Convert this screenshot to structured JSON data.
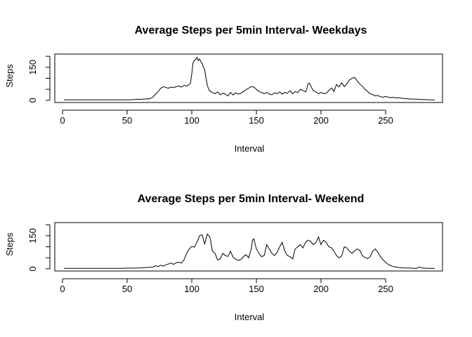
{
  "chart_data": [
    {
      "type": "line",
      "title": "Average Steps per 5min Interval- Weekdays",
      "xlabel": "Interval",
      "ylabel": "Steps",
      "xlim": [
        -6,
        294
      ],
      "ylim": [
        -10,
        210
      ],
      "xticks": [
        0,
        50,
        100,
        150,
        200,
        250
      ],
      "yticks": [
        0,
        50,
        100,
        150,
        200
      ],
      "ytick_labels": [
        "0",
        "",
        "",
        "150",
        ""
      ],
      "grid": false,
      "series": [
        {
          "x": [
            1,
            5,
            10,
            15,
            20,
            25,
            30,
            35,
            40,
            45,
            50,
            55,
            58,
            60,
            62,
            64,
            66,
            68,
            70,
            72,
            74,
            76,
            78,
            80,
            82,
            84,
            86,
            88,
            90,
            92,
            94,
            96,
            98,
            99,
            100,
            101,
            102,
            103,
            104,
            105,
            106,
            107,
            108,
            109,
            110,
            111,
            112,
            113,
            114,
            116,
            118,
            120,
            122,
            124,
            126,
            128,
            130,
            132,
            134,
            136,
            138,
            140,
            142,
            144,
            146,
            148,
            150,
            152,
            154,
            156,
            158,
            160,
            162,
            164,
            166,
            168,
            170,
            172,
            174,
            176,
            178,
            180,
            182,
            184,
            186,
            188,
            189,
            190,
            191,
            192,
            194,
            196,
            198,
            200,
            202,
            204,
            206,
            208,
            210,
            212,
            214,
            216,
            218,
            220,
            222,
            224,
            226,
            227,
            228,
            230,
            232,
            234,
            236,
            238,
            240,
            242,
            244,
            246,
            248,
            250,
            252,
            254,
            256,
            258,
            260,
            262,
            264,
            266,
            268,
            270,
            272,
            274,
            276,
            278,
            280,
            282,
            284,
            286,
            288
          ],
          "y": [
            2,
            2,
            2,
            2,
            2,
            2,
            2,
            2,
            2,
            2,
            2,
            3,
            5,
            4,
            5,
            6,
            7,
            8,
            15,
            28,
            40,
            55,
            62,
            58,
            55,
            60,
            58,
            62,
            65,
            60,
            68,
            64,
            72,
            78,
            120,
            170,
            182,
            185,
            195,
            180,
            188,
            176,
            168,
            150,
            140,
            100,
            70,
            50,
            42,
            35,
            30,
            38,
            25,
            32,
            28,
            20,
            36,
            24,
            34,
            28,
            32,
            40,
            48,
            55,
            62,
            60,
            50,
            40,
            35,
            30,
            36,
            28,
            25,
            34,
            30,
            38,
            28,
            36,
            32,
            44,
            30,
            40,
            35,
            50,
            45,
            38,
            52,
            75,
            78,
            66,
            44,
            38,
            30,
            36,
            30,
            32,
            44,
            56,
            40,
            72,
            60,
            80,
            62,
            74,
            92,
            100,
            104,
            96,
            88,
            74,
            64,
            50,
            40,
            30,
            26,
            20,
            22,
            16,
            14,
            18,
            14,
            12,
            14,
            10,
            12,
            10,
            8,
            8,
            6,
            6,
            5,
            5,
            4,
            4,
            3,
            3,
            2,
            2,
            2
          ]
        }
      ]
    },
    {
      "type": "line",
      "title": "Average Steps per 5min Interval- Weekend",
      "xlabel": "Interval",
      "ylabel": "Steps",
      "xlim": [
        -6,
        294
      ],
      "ylim": [
        -10,
        210
      ],
      "xticks": [
        0,
        50,
        100,
        150,
        200,
        250
      ],
      "yticks": [
        0,
        50,
        100,
        150,
        200
      ],
      "ytick_labels": [
        "0",
        "",
        "",
        "150",
        ""
      ],
      "grid": false,
      "series": [
        {
          "x": [
            1,
            5,
            10,
            15,
            20,
            25,
            30,
            35,
            40,
            45,
            50,
            55,
            60,
            65,
            70,
            72,
            74,
            76,
            78,
            80,
            82,
            84,
            86,
            88,
            90,
            92,
            94,
            96,
            98,
            100,
            102,
            104,
            106,
            108,
            110,
            112,
            114,
            116,
            118,
            120,
            122,
            124,
            126,
            128,
            130,
            132,
            134,
            136,
            138,
            140,
            142,
            144,
            146,
            147,
            148,
            150,
            152,
            154,
            156,
            158,
            160,
            162,
            164,
            166,
            168,
            170,
            172,
            174,
            176,
            178,
            180,
            182,
            184,
            186,
            188,
            190,
            192,
            194,
            196,
            198,
            200,
            202,
            204,
            206,
            208,
            210,
            212,
            214,
            216,
            218,
            220,
            222,
            224,
            226,
            228,
            230,
            232,
            234,
            236,
            238,
            240,
            242,
            244,
            246,
            248,
            250,
            252,
            254,
            256,
            258,
            260,
            262,
            264,
            266,
            268,
            270,
            272,
            274,
            276,
            278,
            280,
            282,
            284,
            286,
            288
          ],
          "y": [
            2,
            2,
            2,
            2,
            2,
            2,
            2,
            2,
            2,
            2,
            3,
            3,
            4,
            6,
            8,
            14,
            10,
            16,
            12,
            18,
            22,
            26,
            20,
            28,
            30,
            26,
            40,
            70,
            90,
            102,
            98,
            120,
            150,
            155,
            112,
            158,
            145,
            80,
            70,
            40,
            45,
            70,
            60,
            56,
            80,
            52,
            44,
            38,
            42,
            56,
            64,
            50,
            90,
            130,
            136,
            90,
            70,
            55,
            60,
            110,
            90,
            70,
            60,
            75,
            100,
            120,
            80,
            60,
            55,
            45,
            90,
            100,
            110,
            95,
            120,
            130,
            125,
            110,
            118,
            145,
            110,
            130,
            120,
            100,
            96,
            80,
            60,
            50,
            58,
            100,
            95,
            80,
            70,
            82,
            90,
            84,
            60,
            52,
            46,
            55,
            80,
            90,
            75,
            55,
            40,
            30,
            20,
            14,
            10,
            8,
            6,
            5,
            4,
            4,
            3,
            3,
            2,
            2,
            8,
            4,
            3,
            2,
            2,
            2,
            2
          ]
        }
      ]
    }
  ]
}
